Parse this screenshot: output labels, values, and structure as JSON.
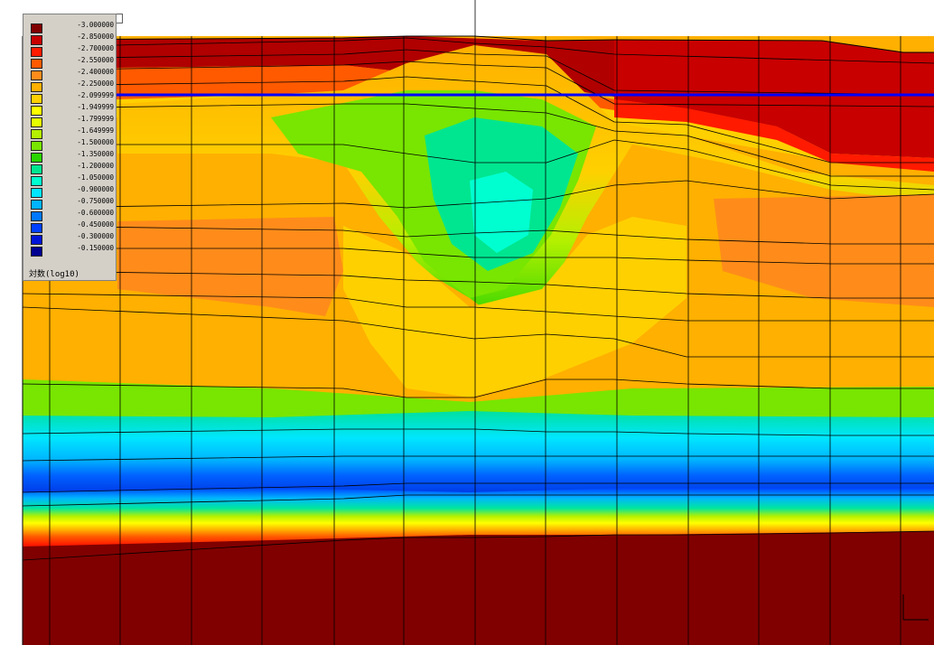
{
  "legend": {
    "caption": "対数(log10)",
    "values": [
      "-3.000000",
      "-2.850000",
      "-2.700000",
      "-2.550000",
      "-2.400000",
      "-2.250000",
      "-2.099999",
      "-1.949999",
      "-1.799999",
      "-1.649999",
      "-1.500000",
      "-1.350000",
      "-1.200000",
      "-1.050000",
      "-0.900000",
      "-0.750000",
      "-0.600000",
      "-0.450000",
      "-0.300000",
      "-0.150000"
    ],
    "colors": [
      "#800000",
      "#c80000",
      "#ff1a00",
      "#ff5a00",
      "#ff8c1a",
      "#ffb000",
      "#ffd000",
      "#ffff00",
      "#e6ff00",
      "#b4f000",
      "#78e600",
      "#2ad400",
      "#00e690",
      "#00ffd0",
      "#00e6ff",
      "#00b4ff",
      "#0078ff",
      "#0040ff",
      "#0014d8",
      "#000090"
    ]
  },
  "plot": {
    "water_line_color": "#0000ff",
    "mesh_line_color": "#000000"
  }
}
